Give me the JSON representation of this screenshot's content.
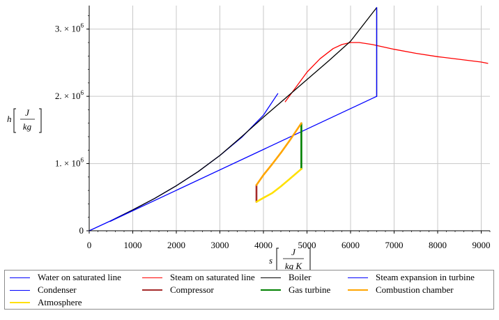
{
  "chart_data": {
    "type": "line",
    "xlabel": "s",
    "xunit_num": "J",
    "xunit_den": "kg K",
    "ylabel": "h",
    "yunit_num": "J",
    "yunit_den": "kg",
    "xlim": [
      0,
      9200
    ],
    "ylim": [
      0,
      3350000
    ],
    "xticks": [
      0,
      1000,
      2000,
      3000,
      4000,
      5000,
      6000,
      7000,
      8000,
      9000
    ],
    "xtick_labels": [
      "0",
      "1000",
      "2000",
      "3000",
      "4000",
      "5000",
      "6000",
      "7000",
      "8000",
      "9000"
    ],
    "yticks": [
      0,
      1000000,
      2000000,
      3000000
    ],
    "ytick_labels": [
      {
        "mant": "0",
        "exp": ""
      },
      {
        "mant": "1. × 10",
        "exp": "6"
      },
      {
        "mant": "2. × 10",
        "exp": "6"
      },
      {
        "mant": "3. × 10",
        "exp": "6"
      }
    ],
    "grid": true,
    "legend_position": "bottom",
    "series": [
      {
        "name": "Water on saturated line",
        "color": "#0000ff",
        "width": 1.3,
        "x": [
          0,
          500,
          1000,
          1500,
          2000,
          2500,
          3000,
          3500,
          4000,
          4330
        ],
        "y": [
          0,
          150000,
          310000,
          480000,
          670000,
          880000,
          1120000,
          1390000,
          1720000,
          2040000
        ]
      },
      {
        "name": "Steam on saturated line",
        "color": "#ff0000",
        "width": 1.3,
        "x": [
          4500,
          4750,
          5000,
          5300,
          5600,
          5800,
          6000,
          6200,
          6500,
          7000,
          7500,
          8000,
          8500,
          9000,
          9150
        ],
        "y": [
          1920000,
          2140000,
          2360000,
          2560000,
          2710000,
          2770000,
          2800000,
          2800000,
          2770000,
          2700000,
          2640000,
          2590000,
          2550000,
          2510000,
          2490000
        ]
      },
      {
        "name": "Boiler",
        "color": "#000000",
        "width": 1.3,
        "x": [
          480,
          1000,
          1500,
          2000,
          2500,
          3000,
          3500,
          4000,
          4500,
          5000,
          5500,
          6000,
          6600,
          6600
        ],
        "y": [
          140000,
          310000,
          480000,
          670000,
          880000,
          1120000,
          1400000,
          1690000,
          1970000,
          2250000,
          2530000,
          2820000,
          3320000,
          2000000
        ]
      },
      {
        "name": "Steam expansion in turbine",
        "color": "#0000ff",
        "width": 1.3,
        "x": [
          6600,
          6600
        ],
        "y": [
          3320000,
          2000000
        ]
      },
      {
        "name": "Condenser",
        "color": "#0000ff",
        "width": 1.3,
        "x": [
          6600,
          480
        ],
        "y": [
          2000000,
          140000
        ]
      },
      {
        "name": "Compressor",
        "color": "#a52a2a",
        "width": 2.6,
        "x": [
          3840,
          3840
        ],
        "y": [
          430000,
          680000
        ]
      },
      {
        "name": "Gas turbine",
        "color": "#008000",
        "width": 2.6,
        "x": [
          4870,
          4870
        ],
        "y": [
          1600000,
          920000
        ]
      },
      {
        "name": "Combustion chamber",
        "color": "#ffa500",
        "width": 2.6,
        "x": [
          3840,
          4000,
          4200,
          4400,
          4600,
          4870
        ],
        "y": [
          680000,
          830000,
          990000,
          1160000,
          1340000,
          1600000
        ]
      },
      {
        "name": "Atmosphere",
        "color": "#ffe000",
        "width": 2.6,
        "x": [
          4870,
          4600,
          4400,
          4200,
          4000,
          3840
        ],
        "y": [
          920000,
          770000,
          660000,
          560000,
          490000,
          430000
        ]
      }
    ]
  }
}
